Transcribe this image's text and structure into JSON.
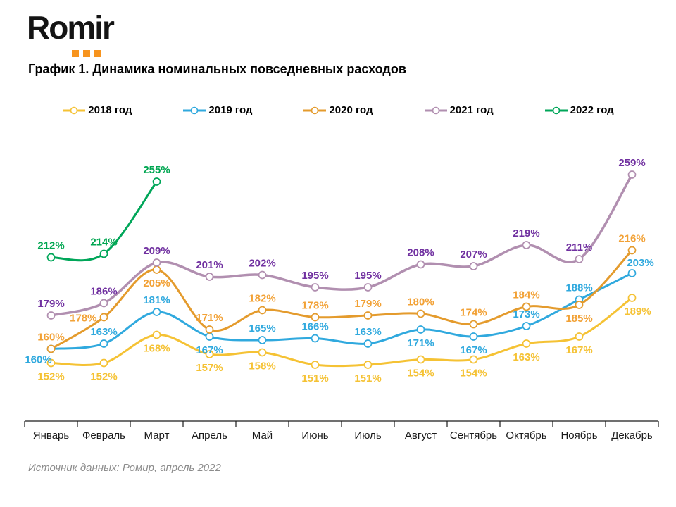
{
  "logo": {
    "text": "Romir",
    "accent_color": "#F7941E"
  },
  "title": "График 1. Динамика номинальных повседневных расходов",
  "source": "Источник данных: Ромир, апрель 2022",
  "chart_data": {
    "type": "line",
    "title": "График 1. Динамика номинальных повседневных расходов",
    "unit": "%",
    "grid": false,
    "legend_position": "top",
    "ylim": [
      140,
      270
    ],
    "categories": [
      "Январь",
      "Февраль",
      "Март",
      "Апрель",
      "Май",
      "Июнь",
      "Июль",
      "Август",
      "Сентябрь",
      "Октябрь",
      "Ноябрь",
      "Декабрь"
    ],
    "series": [
      {
        "name": "2018 год",
        "color": "#F5C234",
        "label_color": "#F5C234",
        "values": [
          152,
          152,
          168,
          157,
          158,
          151,
          151,
          154,
          154,
          163,
          167,
          189
        ],
        "label_sides": [
          "below",
          "below",
          "below",
          "below",
          "below",
          "below",
          "below",
          "below",
          "below",
          "below",
          "below",
          "below-right"
        ]
      },
      {
        "name": "2019 год",
        "color": "#30A9DE",
        "label_color": "#30A9DE",
        "values": [
          160,
          163,
          181,
          167,
          165,
          166,
          163,
          171,
          167,
          173,
          188,
          203
        ],
        "label_sides": [
          "below-left",
          "above",
          "above",
          "below",
          "above",
          "above",
          "above",
          "below",
          "below",
          "above",
          "above",
          "above-right"
        ]
      },
      {
        "name": "2020 год",
        "color": "#E49B2D",
        "label_color": "#F2A135",
        "values": [
          160,
          178,
          205,
          171,
          182,
          178,
          179,
          180,
          174,
          184,
          185,
          216
        ],
        "label_sides": [
          "above",
          "left",
          "below",
          "above",
          "above",
          "above",
          "above",
          "above",
          "above",
          "above",
          "below",
          "above"
        ]
      },
      {
        "name": "2021 год",
        "color": "#B18FB0",
        "label_color": "#7030A0",
        "values": [
          179,
          186,
          209,
          201,
          202,
          195,
          195,
          208,
          207,
          219,
          211,
          259
        ],
        "label_sides": [
          "above",
          "above",
          "above",
          "above",
          "above",
          "above",
          "above",
          "above",
          "above",
          "above",
          "above",
          "above"
        ]
      },
      {
        "name": "2022 год",
        "color": "#00A659",
        "label_color": "#00A651",
        "values": [
          212,
          214,
          255,
          null,
          null,
          null,
          null,
          null,
          null,
          null,
          null,
          null
        ],
        "label_sides": [
          "above",
          "above",
          "above",
          null,
          null,
          null,
          null,
          null,
          null,
          null,
          null,
          null
        ]
      }
    ]
  }
}
